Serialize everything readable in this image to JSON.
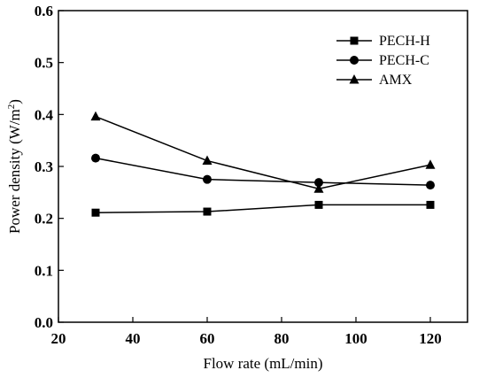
{
  "chart_data": {
    "type": "line",
    "xlabel": "Flow rate (mL/min)",
    "ylabel": "Power density (W/m",
    "ylabel_sup": "2",
    "ylabel_end": ")",
    "xlim": [
      20,
      130
    ],
    "ylim": [
      0.0,
      0.6
    ],
    "xticks": [
      20,
      40,
      60,
      80,
      100,
      120
    ],
    "yticks": [
      0.0,
      0.1,
      0.2,
      0.3,
      0.4,
      0.5,
      0.6
    ],
    "xtick_labels": [
      "20",
      "40",
      "60",
      "80",
      "100",
      "120"
    ],
    "ytick_labels": [
      "0.0",
      "0.1",
      "0.2",
      "0.3",
      "0.4",
      "0.5",
      "0.6"
    ],
    "grid": false,
    "legend_position": "top-right",
    "x": [
      30,
      60,
      90,
      120
    ],
    "series": [
      {
        "name": "PECH-H",
        "marker": "square",
        "values": [
          0.211,
          0.213,
          0.226,
          0.226
        ]
      },
      {
        "name": "PECH-C",
        "marker": "circle",
        "values": [
          0.316,
          0.275,
          0.269,
          0.264
        ]
      },
      {
        "name": "AMX",
        "marker": "triangle",
        "values": [
          0.396,
          0.311,
          0.257,
          0.303
        ]
      }
    ]
  }
}
